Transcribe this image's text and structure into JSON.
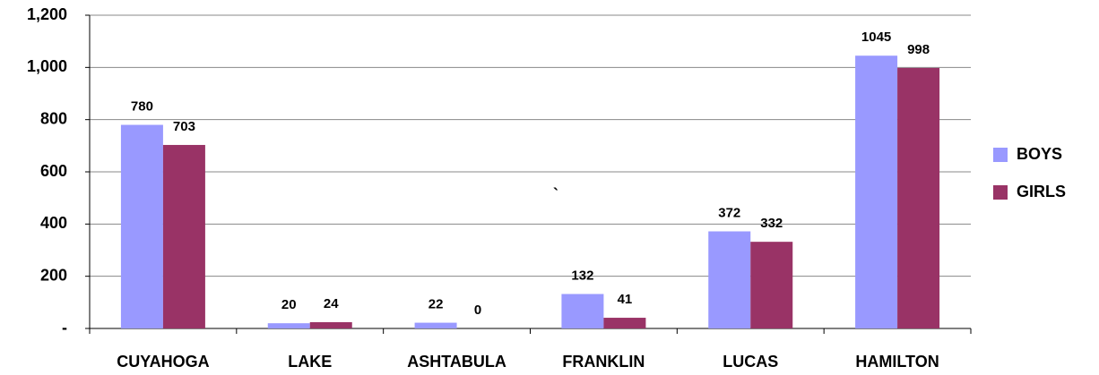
{
  "chart_data": {
    "type": "bar",
    "categories": [
      "CUYAHOGA",
      "LAKE",
      "ASHTABULA",
      "FRANKLIN",
      "LUCAS",
      "HAMILTON"
    ],
    "series": [
      {
        "name": "BOYS",
        "color": "#9999ff",
        "values": [
          780,
          20,
          22,
          132,
          372,
          1045
        ]
      },
      {
        "name": "GIRLS",
        "color": "#993366",
        "values": [
          703,
          24,
          0,
          41,
          332,
          998
        ]
      }
    ],
    "ylim": [
      0,
      1200
    ],
    "yticks": [
      {
        "value": 0,
        "label": "-"
      },
      200,
      400,
      600,
      800,
      {
        "value": 1000,
        "label": "1,000"
      },
      {
        "value": 1200,
        "label": "1,200"
      }
    ],
    "grid": true,
    "legend": "right",
    "annotation": "`"
  }
}
